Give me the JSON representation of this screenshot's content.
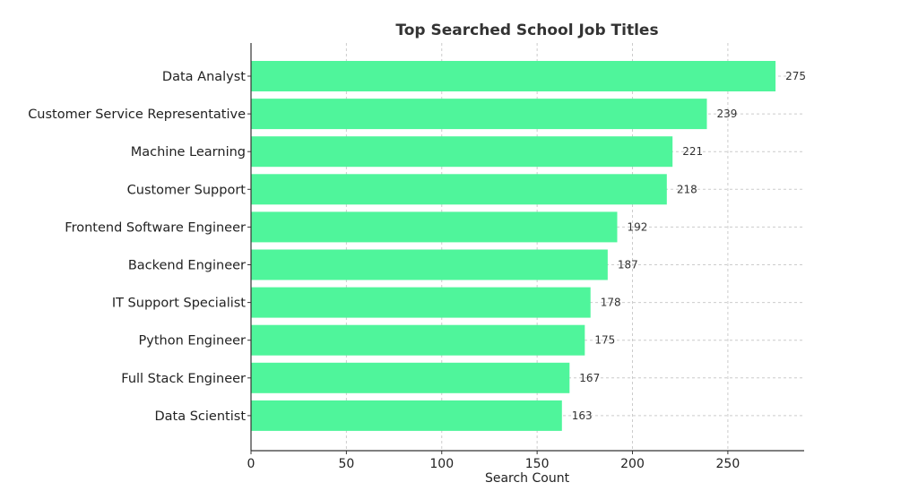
{
  "chart_data": {
    "type": "bar",
    "orientation": "horizontal",
    "title": "Top Searched School Job Titles",
    "xlabel": "Search Count",
    "ylabel": "",
    "xlim": [
      0,
      290
    ],
    "xticks": [
      0,
      50,
      100,
      150,
      200,
      250
    ],
    "grid": true,
    "bar_color": "#4ff59b",
    "categories": [
      "Data Analyst",
      "Customer Service Representative",
      "Machine Learning",
      "Customer Support",
      "Frontend Software Engineer",
      "Backend Engineer",
      "IT Support Specialist",
      "Python Engineer",
      "Full Stack Engineer",
      "Data Scientist"
    ],
    "values": [
      275,
      239,
      221,
      218,
      192,
      187,
      178,
      175,
      167,
      163
    ]
  }
}
